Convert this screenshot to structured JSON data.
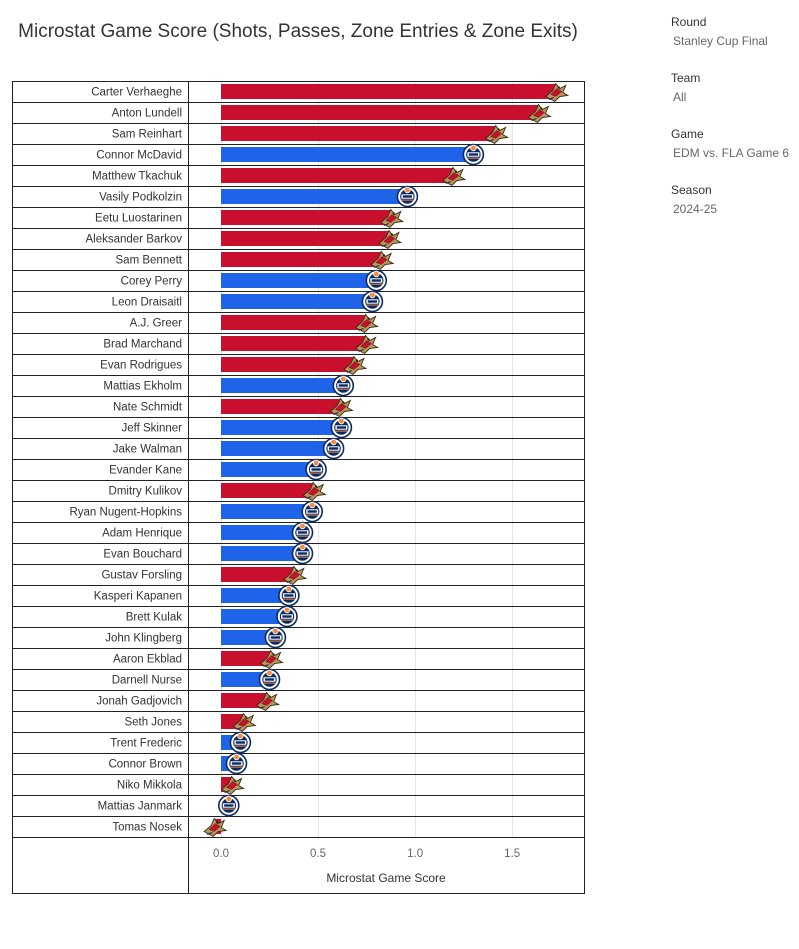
{
  "title": "Microstat Game Score (Shots, Passes, Zone Entries & Zone Exits)",
  "filters": [
    {
      "label": "Round",
      "value": "Stanley Cup Final"
    },
    {
      "label": "Team",
      "value": "All"
    },
    {
      "label": "Game",
      "value": "EDM vs. FLA Game 6"
    },
    {
      "label": "Season",
      "value": "2024-25"
    }
  ],
  "colors": {
    "EDM": "#1f63e8",
    "FLA": "#c8102e",
    "edm_orange": "#f58a3c",
    "edm_navy": "#0b2a63",
    "fla_gold": "#b9975b"
  },
  "chart_data": {
    "type": "bar",
    "orientation": "horizontal",
    "xlabel": "Microstat Game Score",
    "xlim": [
      -0.17,
      1.87
    ],
    "xticks": [
      0.0,
      0.5,
      1.0,
      1.5
    ],
    "xtick_labels": [
      "0.0",
      "0.5",
      "1.0",
      "1.5"
    ],
    "grid": "vertical",
    "categories": [
      "Carter Verhaeghe",
      "Anton Lundell",
      "Sam Reinhart",
      "Connor McDavid",
      "Matthew Tkachuk",
      "Vasily Podkolzin",
      "Eetu Luostarinen",
      "Aleksander Barkov",
      "Sam Bennett",
      "Corey Perry",
      "Leon Draisaitl",
      "A.J. Greer",
      "Brad Marchand",
      "Evan Rodrigues",
      "Mattias Ekholm",
      "Nate Schmidt",
      "Jeff Skinner",
      "Jake Walman",
      "Evander Kane",
      "Dmitry Kulikov",
      "Ryan Nugent-Hopkins",
      "Adam Henrique",
      "Evan Bouchard",
      "Gustav Forsling",
      "Kasperi Kapanen",
      "Brett Kulak",
      "John Klingberg",
      "Aaron Ekblad",
      "Darnell Nurse",
      "Jonah Gadjovich",
      "Seth Jones",
      "Trent Frederic",
      "Connor Brown",
      "Niko Mikkola",
      "Mattias Janmark",
      "Tomas Nosek"
    ],
    "teams": [
      "FLA",
      "FLA",
      "FLA",
      "EDM",
      "FLA",
      "EDM",
      "FLA",
      "FLA",
      "FLA",
      "EDM",
      "EDM",
      "FLA",
      "FLA",
      "FLA",
      "EDM",
      "FLA",
      "EDM",
      "EDM",
      "EDM",
      "FLA",
      "EDM",
      "EDM",
      "EDM",
      "FLA",
      "EDM",
      "EDM",
      "EDM",
      "FLA",
      "EDM",
      "FLA",
      "FLA",
      "EDM",
      "EDM",
      "FLA",
      "EDM",
      "FLA"
    ],
    "values": [
      1.73,
      1.64,
      1.42,
      1.3,
      1.2,
      0.96,
      0.88,
      0.87,
      0.83,
      0.8,
      0.78,
      0.75,
      0.75,
      0.69,
      0.63,
      0.62,
      0.62,
      0.58,
      0.49,
      0.48,
      0.47,
      0.42,
      0.42,
      0.38,
      0.35,
      0.34,
      0.28,
      0.26,
      0.25,
      0.24,
      0.12,
      0.1,
      0.08,
      0.06,
      0.04,
      -0.03
    ]
  }
}
